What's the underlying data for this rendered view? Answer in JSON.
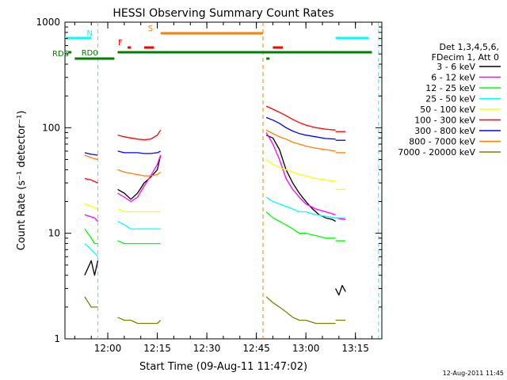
{
  "chart_data": {
    "type": "line",
    "title": "HESSI Observing Summary Count Rates",
    "xlabel": "Start Time (09-Aug-11 11:47:02)",
    "ylabel": "Count Rate (s⁻¹ detector⁻¹)",
    "x_unit": "UT time (HH:MM), 09-Aug-2011",
    "xlim": [
      "11:47:02",
      "13:23"
    ],
    "ylim": [
      1,
      1000
    ],
    "yscale": "log",
    "x_ticks": [
      "12:00",
      "12:15",
      "12:30",
      "12:45",
      "13:00",
      "13:15"
    ],
    "y_ticks": [
      "1",
      "10",
      "100",
      "1000"
    ],
    "grid": false,
    "legend_position": "right",
    "legend_header": [
      "Det 1,3,4,5,6,",
      "FDecim 1, Att 0"
    ],
    "timestamp": "12-Aug-2011 11:45",
    "series": [
      {
        "name": "3 - 6 keV",
        "color": "#000000",
        "segments": [
          [
            [
              "11:53",
              "4.0"
            ],
            [
              "11:55",
              "5.5"
            ],
            [
              "11:56",
              "4.0"
            ],
            [
              "11:57",
              "5.5"
            ]
          ],
          [
            [
              "12:03",
              "26"
            ],
            [
              "12:05",
              "24"
            ],
            [
              "12:07",
              "21"
            ],
            [
              "12:09",
              "24"
            ],
            [
              "12:11",
              "30"
            ],
            [
              "12:13",
              "34"
            ],
            [
              "12:15",
              "40"
            ],
            [
              "12:16",
              "55"
            ]
          ],
          [
            [
              "12:48",
              "85"
            ],
            [
              "12:50",
              "80"
            ],
            [
              "12:52",
              "62"
            ],
            [
              "12:54",
              "40"
            ],
            [
              "12:56",
              "30"
            ],
            [
              "12:58",
              "24"
            ],
            [
              "13:00",
              "20"
            ],
            [
              "13:02",
              "17"
            ],
            [
              "13:04",
              "15"
            ],
            [
              "13:06",
              "14"
            ],
            [
              "13:08",
              "13.5"
            ],
            [
              "13:09",
              "13"
            ]
          ],
          [
            [
              "13:09",
              "3.0"
            ],
            [
              "13:10",
              "2.6"
            ],
            [
              "13:11",
              "3.2"
            ],
            [
              "13:12",
              "2.8"
            ]
          ]
        ]
      },
      {
        "name": "6 - 12 keV",
        "color": "#ff00ff",
        "segments": [
          [
            [
              "11:53",
              "15"
            ],
            [
              "11:56",
              "14"
            ],
            [
              "11:57",
              "13"
            ]
          ],
          [
            [
              "12:03",
              "24"
            ],
            [
              "12:05",
              "22"
            ],
            [
              "12:07",
              "20"
            ],
            [
              "12:09",
              "22"
            ],
            [
              "12:11",
              "28"
            ],
            [
              "12:13",
              "35"
            ],
            [
              "12:15",
              "45"
            ],
            [
              "12:16",
              "55"
            ]
          ],
          [
            [
              "12:48",
              "90"
            ],
            [
              "12:50",
              "70"
            ],
            [
              "12:52",
              "50"
            ],
            [
              "12:54",
              "33"
            ],
            [
              "12:56",
              "26"
            ],
            [
              "12:58",
              "22"
            ],
            [
              "13:00",
              "19"
            ],
            [
              "13:03",
              "17"
            ],
            [
              "13:06",
              "16"
            ],
            [
              "13:09",
              "15"
            ]
          ],
          [
            [
              "13:09",
              "14"
            ],
            [
              "13:12",
              "13.5"
            ]
          ]
        ]
      },
      {
        "name": "12 - 25 keV",
        "color": "#00ff00",
        "segments": [
          [
            [
              "11:53",
              "11"
            ],
            [
              "11:55",
              "9"
            ],
            [
              "11:56",
              "8"
            ],
            [
              "11:57",
              "8"
            ]
          ],
          [
            [
              "12:03",
              "8.5"
            ],
            [
              "12:05",
              "8"
            ],
            [
              "12:07",
              "8"
            ],
            [
              "12:09",
              "8"
            ],
            [
              "12:11",
              "8"
            ],
            [
              "12:13",
              "8"
            ],
            [
              "12:15",
              "8"
            ],
            [
              "12:16",
              "8"
            ]
          ],
          [
            [
              "12:48",
              "16"
            ],
            [
              "12:50",
              "14"
            ],
            [
              "12:52",
              "13"
            ],
            [
              "12:54",
              "12"
            ],
            [
              "12:56",
              "11"
            ],
            [
              "12:58",
              "10"
            ],
            [
              "13:00",
              "10"
            ],
            [
              "13:03",
              "9.5"
            ],
            [
              "13:06",
              "9"
            ],
            [
              "13:09",
              "9"
            ]
          ],
          [
            [
              "13:09",
              "8.5"
            ],
            [
              "13:12",
              "8.5"
            ]
          ]
        ]
      },
      {
        "name": "25 - 50 keV",
        "color": "#00ffff",
        "segments": [
          [
            [
              "11:53",
              "8"
            ],
            [
              "11:55",
              "7"
            ],
            [
              "11:57",
              "6"
            ]
          ],
          [
            [
              "12:03",
              "13"
            ],
            [
              "12:05",
              "12"
            ],
            [
              "12:07",
              "11"
            ],
            [
              "12:09",
              "11"
            ],
            [
              "12:11",
              "11"
            ],
            [
              "12:13",
              "11"
            ],
            [
              "12:15",
              "11"
            ],
            [
              "12:16",
              "11"
            ]
          ],
          [
            [
              "12:48",
              "22"
            ],
            [
              "12:50",
              "20"
            ],
            [
              "12:52",
              "19"
            ],
            [
              "12:54",
              "18"
            ],
            [
              "12:56",
              "17"
            ],
            [
              "12:58",
              "16"
            ],
            [
              "13:00",
              "16"
            ],
            [
              "13:03",
              "15"
            ],
            [
              "13:06",
              "14.5"
            ],
            [
              "13:09",
              "14"
            ]
          ],
          [
            [
              "13:09",
              "14"
            ],
            [
              "13:12",
              "14"
            ]
          ]
        ]
      },
      {
        "name": "50 - 100 keV",
        "color": "#ffff00",
        "segments": [
          [
            [
              "11:53",
              "19"
            ],
            [
              "11:55",
              "18"
            ],
            [
              "11:57",
              "17"
            ]
          ],
          [
            [
              "12:03",
              "17"
            ],
            [
              "12:05",
              "16"
            ],
            [
              "12:07",
              "16"
            ],
            [
              "12:09",
              "16"
            ],
            [
              "12:11",
              "16"
            ],
            [
              "12:13",
              "16"
            ],
            [
              "12:15",
              "16"
            ],
            [
              "12:16",
              "16"
            ]
          ],
          [
            [
              "12:48",
              "50"
            ],
            [
              "12:50",
              "45"
            ],
            [
              "12:52",
              "42"
            ],
            [
              "12:54",
              "40"
            ],
            [
              "12:56",
              "38"
            ],
            [
              "12:58",
              "36"
            ],
            [
              "13:00",
              "35"
            ],
            [
              "13:03",
              "33"
            ],
            [
              "13:06",
              "32"
            ],
            [
              "13:09",
              "31"
            ]
          ],
          [
            [
              "13:09",
              "26"
            ],
            [
              "13:12",
              "26"
            ]
          ]
        ]
      },
      {
        "name": "100 - 300 keV",
        "color": "#ff0000",
        "segments": [
          [
            [
              "11:53",
              "33"
            ],
            [
              "11:55",
              "32"
            ],
            [
              "11:57",
              "30"
            ]
          ],
          [
            [
              "12:03",
              "85"
            ],
            [
              "12:05",
              "82"
            ],
            [
              "12:07",
              "80"
            ],
            [
              "12:09",
              "78"
            ],
            [
              "12:11",
              "77"
            ],
            [
              "12:13",
              "78"
            ],
            [
              "12:15",
              "85"
            ],
            [
              "12:16",
              "95"
            ]
          ],
          [
            [
              "12:48",
              "160"
            ],
            [
              "12:50",
              "150"
            ],
            [
              "12:52",
              "140"
            ],
            [
              "12:54",
              "130"
            ],
            [
              "12:56",
              "120"
            ],
            [
              "12:58",
              "112"
            ],
            [
              "13:00",
              "106"
            ],
            [
              "13:03",
              "100"
            ],
            [
              "13:06",
              "97"
            ],
            [
              "13:09",
              "95"
            ]
          ],
          [
            [
              "13:09",
              "92"
            ],
            [
              "13:12",
              "92"
            ]
          ]
        ]
      },
      {
        "name": "300 - 800 keV",
        "color": "#0000ff",
        "segments": [
          [
            [
              "11:53",
              "58"
            ],
            [
              "11:55",
              "56"
            ],
            [
              "11:57",
              "55"
            ]
          ],
          [
            [
              "12:03",
              "60"
            ],
            [
              "12:05",
              "58"
            ],
            [
              "12:07",
              "58"
            ],
            [
              "12:09",
              "58"
            ],
            [
              "12:11",
              "57"
            ],
            [
              "12:13",
              "57"
            ],
            [
              "12:15",
              "58"
            ],
            [
              "12:16",
              "60"
            ]
          ],
          [
            [
              "12:48",
              "125"
            ],
            [
              "12:50",
              "118"
            ],
            [
              "12:52",
              "110"
            ],
            [
              "12:54",
              "100"
            ],
            [
              "12:56",
              "93"
            ],
            [
              "12:58",
              "88"
            ],
            [
              "13:00",
              "85"
            ],
            [
              "13:03",
              "82"
            ],
            [
              "13:06",
              "79"
            ],
            [
              "13:09",
              "78"
            ]
          ],
          [
            [
              "13:09",
              "76"
            ],
            [
              "13:12",
              "76"
            ]
          ]
        ]
      },
      {
        "name": "800 - 7000 keV",
        "color": "#ff8000",
        "segments": [
          [
            [
              "11:53",
              "55"
            ],
            [
              "11:55",
              "52"
            ],
            [
              "11:57",
              "50"
            ]
          ],
          [
            [
              "12:03",
              "40"
            ],
            [
              "12:05",
              "38"
            ],
            [
              "12:07",
              "37"
            ],
            [
              "12:09",
              "36"
            ],
            [
              "12:11",
              "35"
            ],
            [
              "12:13",
              "35"
            ],
            [
              "12:15",
              "36"
            ],
            [
              "12:16",
              "38"
            ]
          ],
          [
            [
              "12:48",
              "95"
            ],
            [
              "12:50",
              "88"
            ],
            [
              "12:52",
              "82"
            ],
            [
              "12:54",
              "78"
            ],
            [
              "12:56",
              "73"
            ],
            [
              "12:58",
              "70"
            ],
            [
              "13:00",
              "67"
            ],
            [
              "13:03",
              "64"
            ],
            [
              "13:06",
              "62"
            ],
            [
              "13:09",
              "60"
            ]
          ],
          [
            [
              "13:09",
              "58"
            ],
            [
              "13:12",
              "58"
            ]
          ]
        ]
      },
      {
        "name": "7000 - 20000 keV",
        "color": "#808000",
        "segments": [
          [
            [
              "11:53",
              "2.5"
            ],
            [
              "11:55",
              "2"
            ],
            [
              "11:57",
              "2"
            ]
          ],
          [
            [
              "12:03",
              "1.6"
            ],
            [
              "12:05",
              "1.5"
            ],
            [
              "12:07",
              "1.5"
            ],
            [
              "12:09",
              "1.4"
            ],
            [
              "12:11",
              "1.4"
            ],
            [
              "12:13",
              "1.4"
            ],
            [
              "12:15",
              "1.4"
            ],
            [
              "12:16",
              "1.5"
            ]
          ],
          [
            [
              "12:48",
              "2.5"
            ],
            [
              "12:50",
              "2.2"
            ],
            [
              "12:52",
              "2"
            ],
            [
              "12:54",
              "1.8"
            ],
            [
              "12:56",
              "1.6"
            ],
            [
              "12:58",
              "1.5"
            ],
            [
              "13:00",
              "1.5"
            ],
            [
              "13:03",
              "1.4"
            ],
            [
              "13:06",
              "1.4"
            ],
            [
              "13:09",
              "1.4"
            ]
          ],
          [
            [
              "13:09",
              "1.5"
            ],
            [
              "13:12",
              "1.5"
            ]
          ]
        ]
      }
    ],
    "status_bars": [
      {
        "label": "N",
        "color": "#00ffff",
        "intervals": [
          [
            "11:47:02",
            "11:55"
          ],
          [
            "13:09",
            "13:19"
          ]
        ]
      },
      {
        "label": "S",
        "color": "#ff8000",
        "intervals": [
          [
            "12:16",
            "12:47"
          ]
        ]
      },
      {
        "label": "F",
        "color": "#ff0000",
        "intervals": [
          [
            "12:06",
            "12:07"
          ],
          [
            "12:11",
            "12:14"
          ],
          [
            "12:50",
            "12:53"
          ]
        ]
      },
      {
        "label": "RD0",
        "color": "#008000",
        "intervals": [
          [
            "11:48",
            "11:49"
          ],
          [
            "12:03",
            "13:20"
          ]
        ]
      },
      {
        "label": "RD6",
        "color": "#008000",
        "intervals": [
          [
            "11:50",
            "12:02"
          ],
          [
            "12:48",
            "12:49"
          ]
        ]
      }
    ],
    "vertical_markers": [
      {
        "color": "#00ffff",
        "style": "dashed",
        "x": "11:57"
      },
      {
        "color": "#ff8000",
        "style": "dashed",
        "x": "12:47"
      },
      {
        "color": "#00ffff",
        "style": "dashed",
        "x": "13:22"
      }
    ]
  }
}
